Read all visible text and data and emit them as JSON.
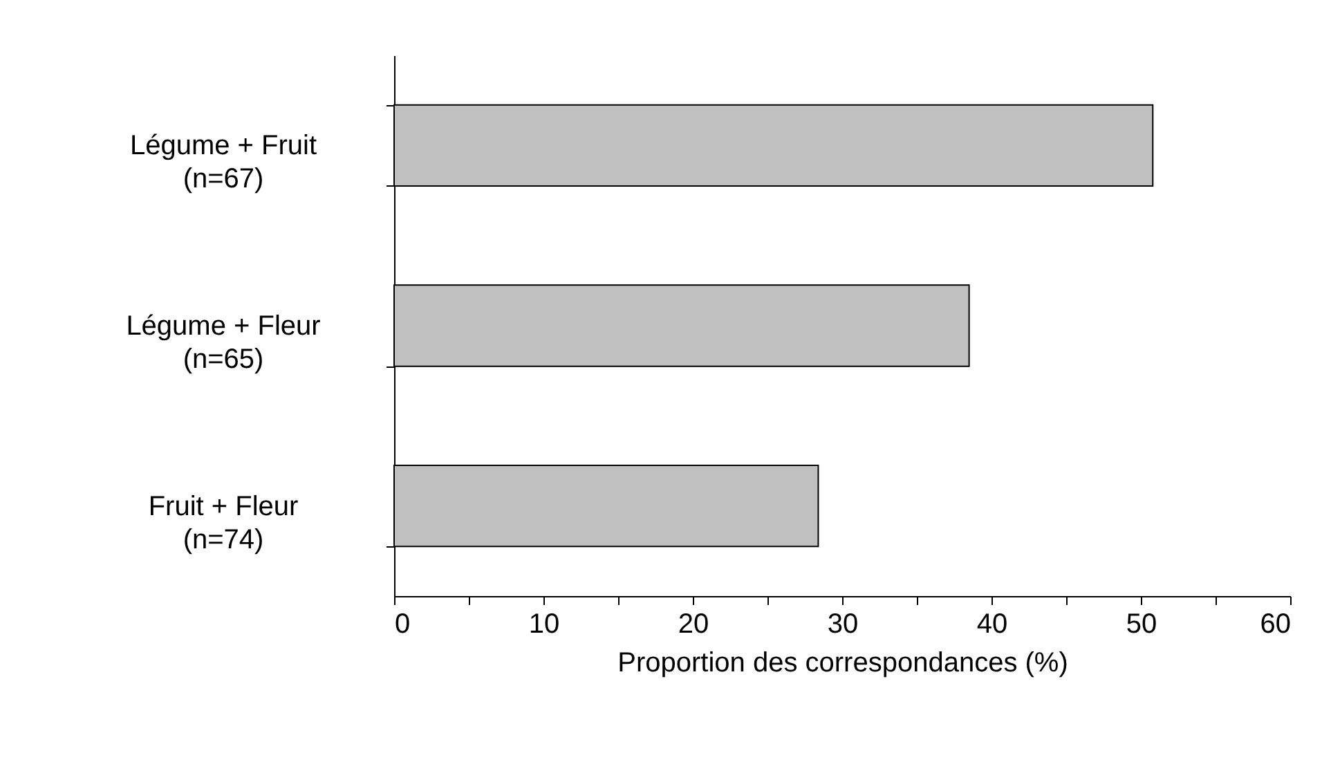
{
  "chart_data": {
    "type": "bar",
    "orientation": "horizontal",
    "xlabel": "Proportion des correspondances (%)",
    "categories": [
      "Légume + Fruit\n(n=67)",
      "Légume + Fleur\n(n=65)",
      "Fruit + Fleur\n(n=74)"
    ],
    "values": [
      50.8,
      38.5,
      28.4
    ],
    "color": "#c0c0c0",
    "xlim": [
      0,
      60
    ],
    "xticks": [
      0,
      {
        "value": 5,
        "label": null
      },
      10,
      {
        "value": 15,
        "label": null
      },
      20,
      {
        "value": 25,
        "label": null
      },
      30,
      {
        "value": 35,
        "label": null
      },
      40,
      {
        "value": 45,
        "label": null
      },
      50,
      {
        "value": 55,
        "label": null
      },
      60
    ],
    "grid": false
  }
}
